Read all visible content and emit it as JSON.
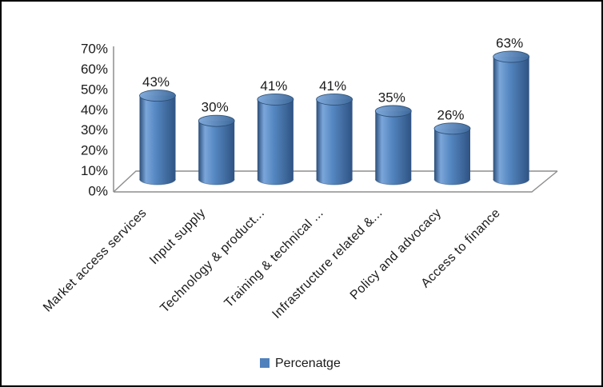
{
  "chart_data": {
    "type": "bar",
    "subtype": "cylinder-3d",
    "title": "",
    "xlabel": "",
    "ylabel": "",
    "categories": [
      "Market access services",
      "Input supply",
      "Technology & product...",
      "Training & technical ...",
      "Infrastructure related &...",
      "Policy and advocacy",
      "Access to finance"
    ],
    "series": [
      {
        "name": "Percenatge",
        "values": [
          43,
          30,
          41,
          41,
          35,
          26,
          63
        ]
      }
    ],
    "data_labels": [
      "43%",
      "30%",
      "41%",
      "41%",
      "35%",
      "26%",
      "63%"
    ],
    "ylim": [
      0,
      70
    ],
    "ytick_step": 10,
    "ytick_labels": [
      "0%",
      "10%",
      "20%",
      "30%",
      "40%",
      "50%",
      "60%",
      "70%"
    ],
    "grid": false,
    "legend": {
      "position": "bottom",
      "entries": [
        "Percenatge"
      ]
    },
    "colors": {
      "bar_fill": "#4f81bd",
      "bar_edge_dark": "#2c4e78",
      "bar_highlight": "#7ba6da",
      "bar_mid": "#5587c1",
      "bar_right_dark": "#2f5383",
      "cap_light": "#7fa9da",
      "cap_dark": "#3f6a9d",
      "cap_rim": "#2d5076",
      "axis_line": "#8e8e8e",
      "text": "#1a1a1a",
      "background": "#ffffff",
      "border": "#000000"
    }
  }
}
